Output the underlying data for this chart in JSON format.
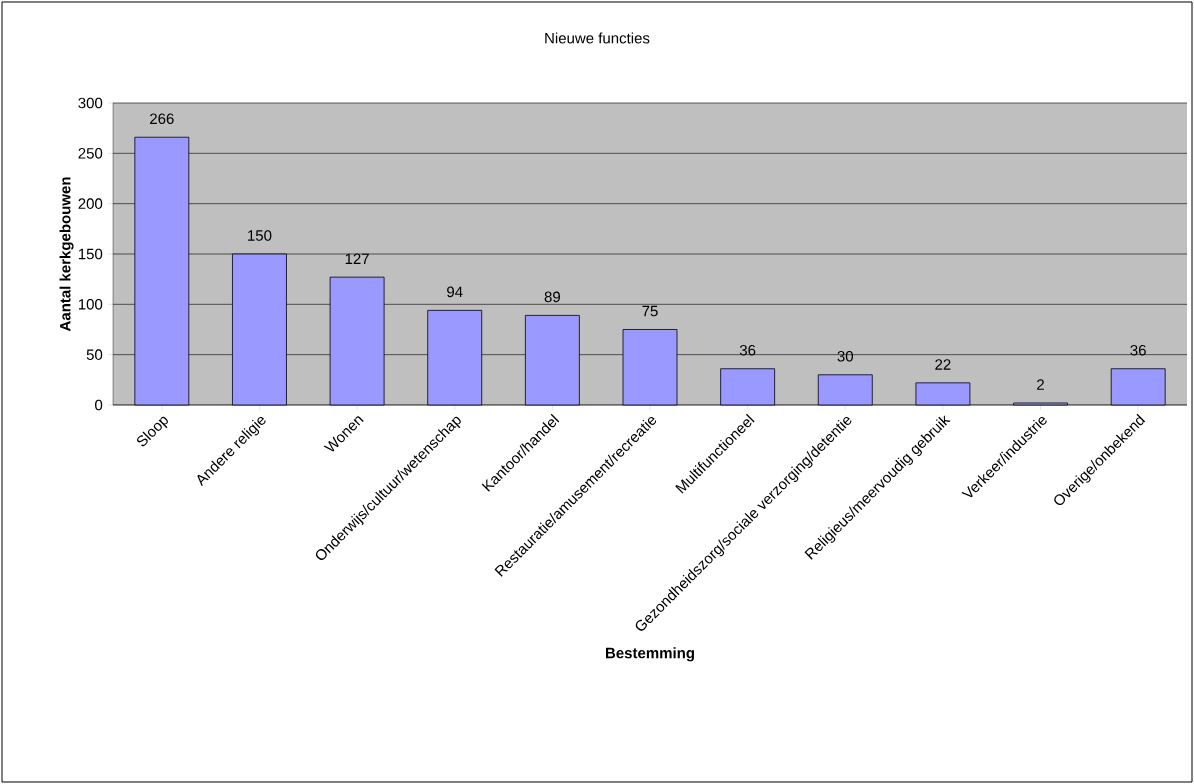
{
  "chart_data": {
    "type": "bar",
    "title": "Nieuwe functies",
    "xlabel": "Bestemming",
    "ylabel": "Aantal kerkgebouwen",
    "categories": [
      "Sloop",
      "Andere religie",
      "Wonen",
      "Onderwijs/cultuur/wetenschap",
      "Kantoor/handel",
      "Restauratie/amusement/recreatie",
      "Multifunctioneel",
      "Gezondheidszorg/sociale verzorging/detentie",
      "Religieus/meervoudig gebruik",
      "Verkeer/industrie",
      "Overige/onbekend"
    ],
    "values": [
      266,
      150,
      127,
      94,
      89,
      75,
      36,
      30,
      22,
      2,
      36
    ],
    "color": "#9999ff",
    "ylim": [
      0,
      300
    ],
    "yticks": [
      0,
      50,
      100,
      150,
      200,
      250,
      300
    ],
    "grid": "y",
    "data_labels": true
  }
}
